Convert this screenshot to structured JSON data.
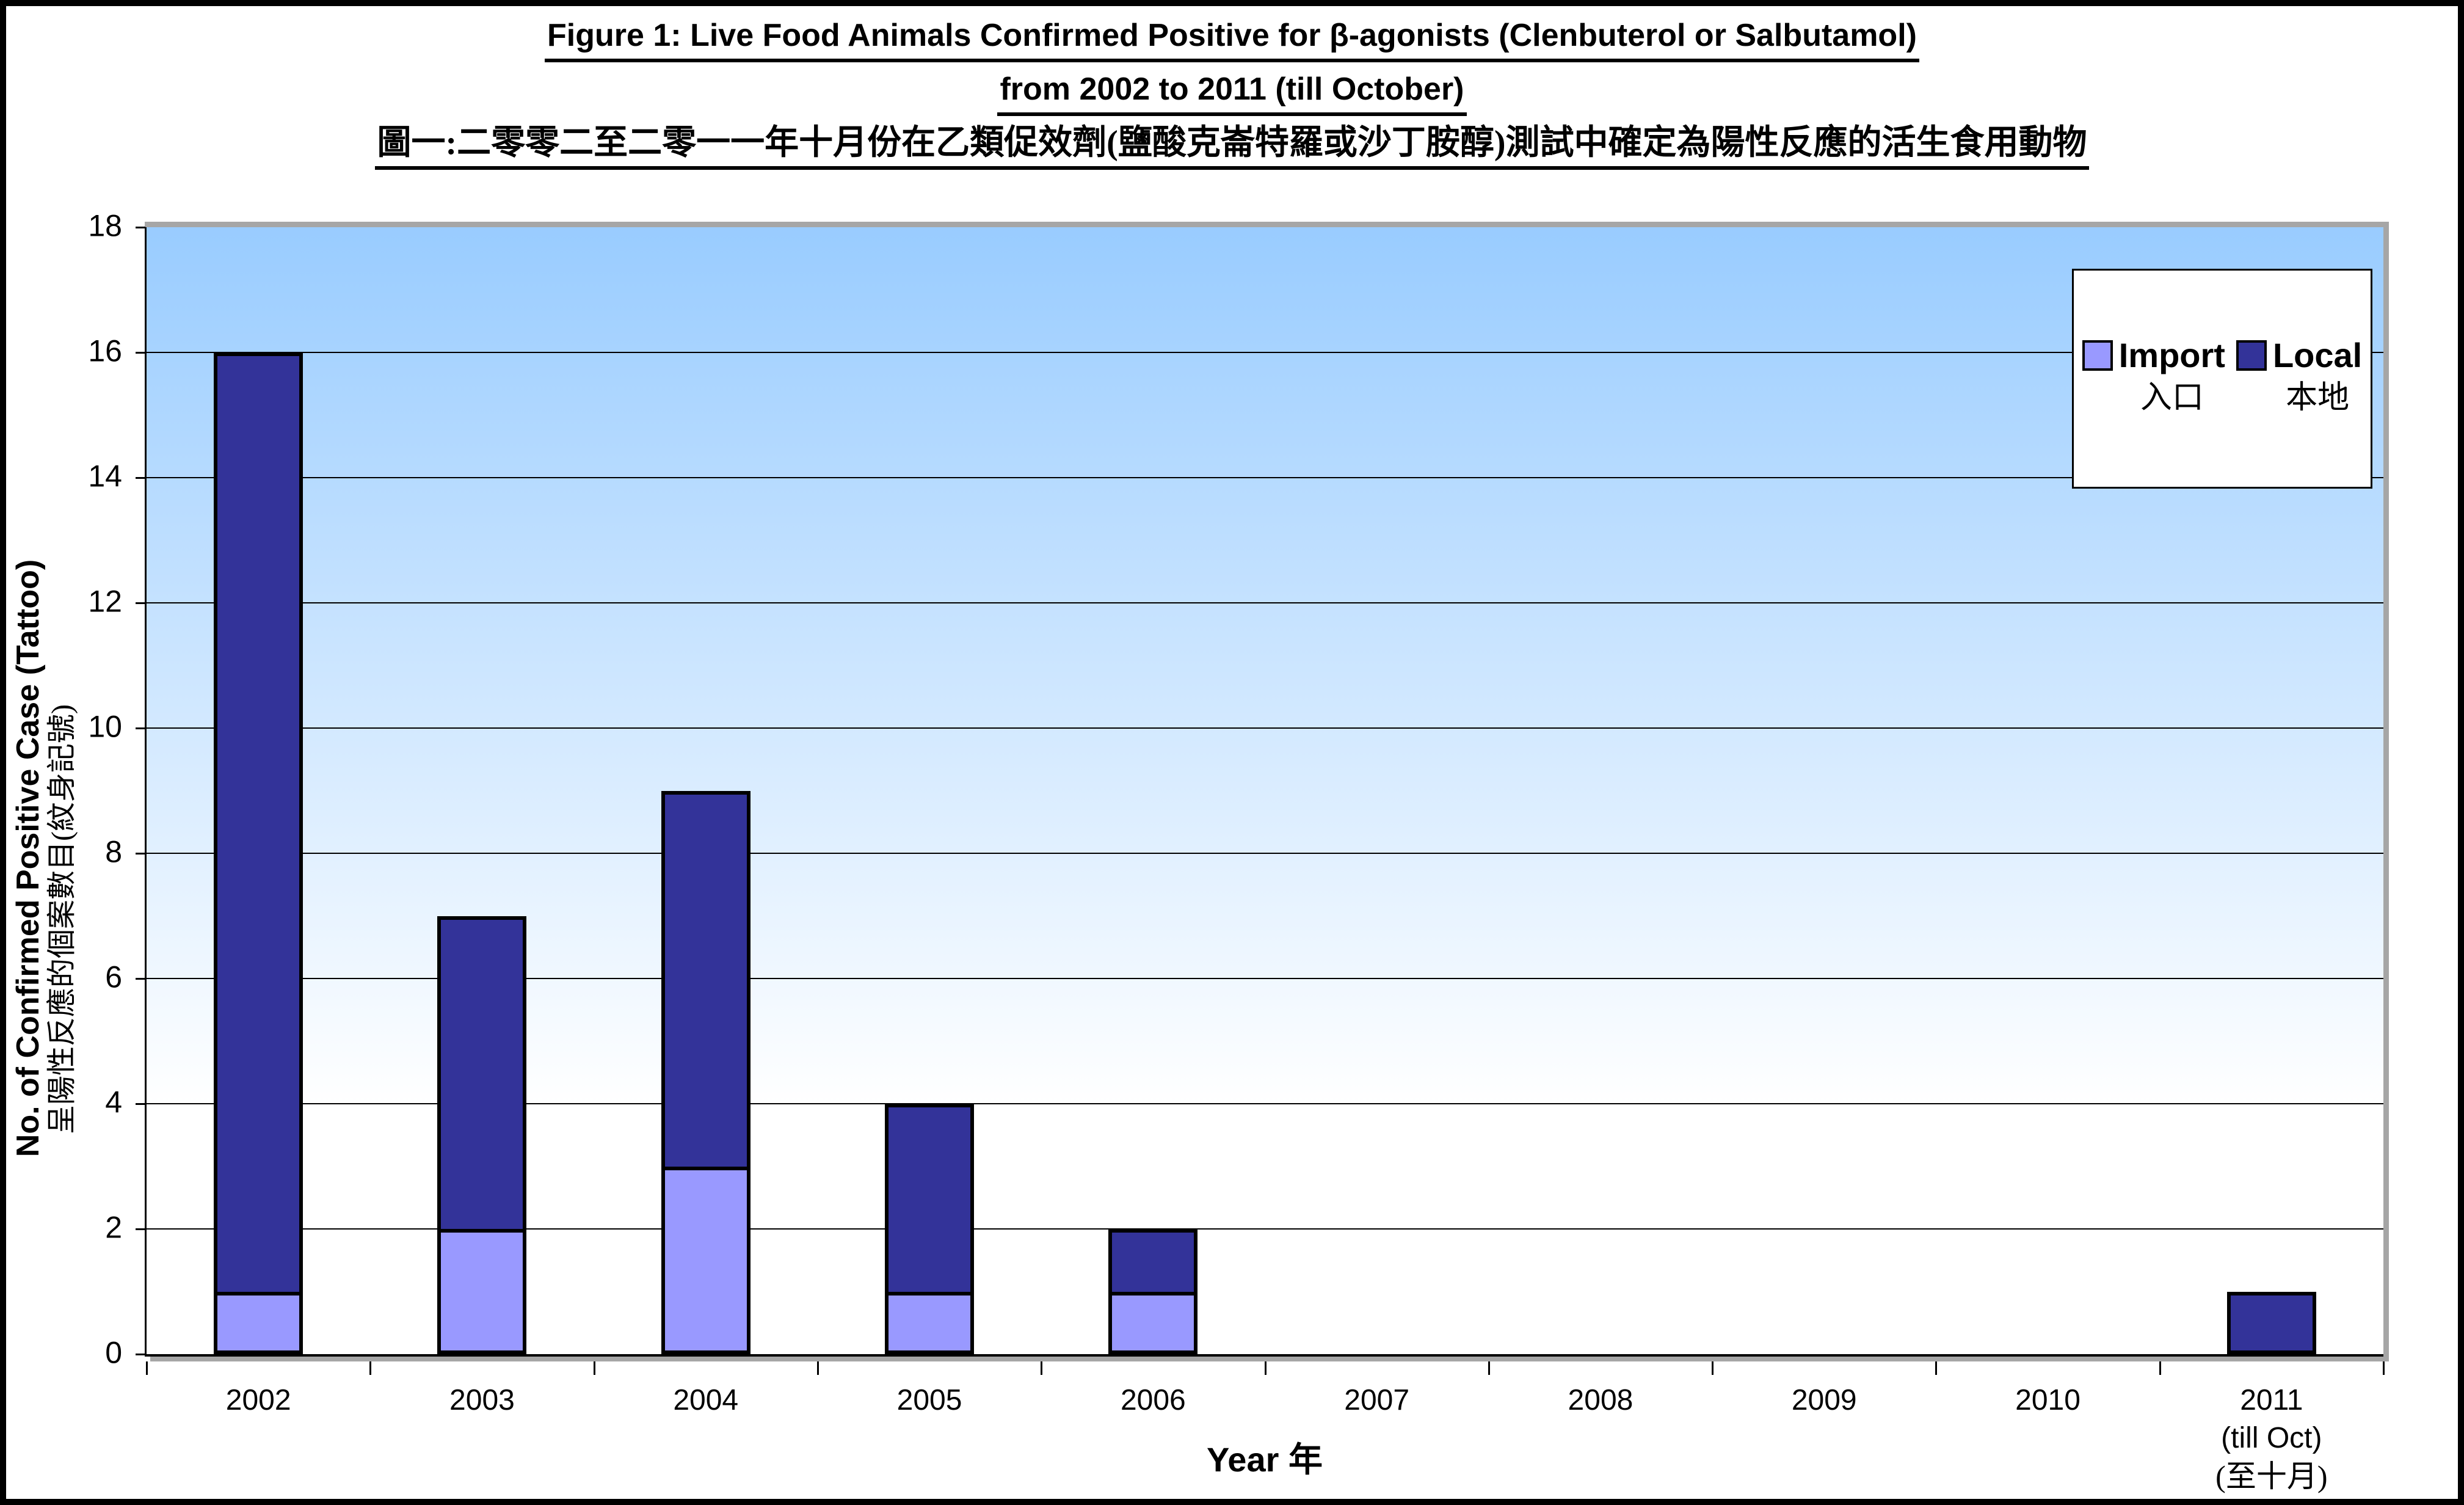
{
  "figure_title": {
    "line1": "Figure 1: Live Food Animals Confirmed Positive for β-agonists (Clenbuterol or Salbutamol)",
    "line2": "from 2002 to 2011 (till October)",
    "line3_zh": "圖一:二零零二至二零一一年十月份在乙類促效劑(鹽酸克崙特羅或沙丁胺醇)測試中確定為陽性反應的活生食用動物"
  },
  "y_axis": {
    "title_en": "No. of Confirmed Positive Case (Tattoo)",
    "title_zh": "呈陽性反應的個案數目(紋身記號)",
    "tick_values": [
      0,
      2,
      4,
      6,
      8,
      10,
      12,
      14,
      16,
      18
    ]
  },
  "x_axis": {
    "title_en": "Year",
    "title_zh": "年"
  },
  "legend": {
    "items": [
      {
        "label_en": "Import",
        "label_zh": "入口",
        "color": "#9999FF"
      },
      {
        "label_en": "Local",
        "label_zh": "本地",
        "color": "#333399"
      }
    ]
  },
  "chart_data": {
    "type": "bar",
    "stacked": true,
    "title": "Figure 1: Live Food Animals Confirmed Positive for β-agonists (Clenbuterol or Salbutamol) from 2002 to 2011 (till October)",
    "title_zh": "圖一:二零零二至二零一一年十月份在乙類促效劑(鹽酸克崙特羅或沙丁胺醇)測試中確定為陽性反應的活生食用動物",
    "categories": [
      "2002",
      "2003",
      "2004",
      "2005",
      "2006",
      "2007",
      "2008",
      "2009",
      "2010",
      "2011 (till Oct) (至十月)"
    ],
    "category_label_lines": [
      [
        "2002"
      ],
      [
        "2003"
      ],
      [
        "2004"
      ],
      [
        "2005"
      ],
      [
        "2006"
      ],
      [
        "2007"
      ],
      [
        "2008"
      ],
      [
        "2009"
      ],
      [
        "2010"
      ],
      [
        "2011",
        "(till Oct)",
        "(至十月)"
      ]
    ],
    "series": [
      {
        "name": "Import 入口",
        "values": [
          1,
          2,
          3,
          1,
          1,
          0,
          0,
          0,
          0,
          0
        ],
        "color": "#9999FF"
      },
      {
        "name": "Local 本地",
        "values": [
          15,
          5,
          6,
          3,
          1,
          0,
          0,
          0,
          0,
          1
        ],
        "color": "#333399"
      }
    ],
    "totals": [
      16,
      7,
      9,
      4,
      2,
      0,
      0,
      0,
      0,
      1
    ],
    "xlabel": "Year 年",
    "ylabel": "No. of Confirmed Positive Case (Tattoo) 呈陽性反應的個案數目(紋身記號)",
    "ylim": [
      0,
      18
    ],
    "y_tick_step": 2,
    "gridlines": "horizontal-black",
    "legend_position": "top-right-inside",
    "plot_background_gradient": [
      "#99CCFF",
      "#FFFFFF"
    ],
    "bar_border_color": "#000000",
    "outer_border_color": "#000000"
  }
}
